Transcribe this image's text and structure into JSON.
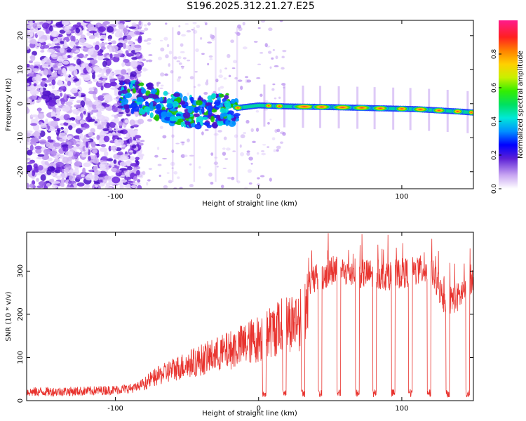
{
  "title": "S196.2025.312.21.27.E25",
  "colors": {
    "background": "#ffffff",
    "snr_line": "#e8332e",
    "spectro_ridge": "#ff2a2a",
    "spectro_noise": "#7b2bd8"
  },
  "chart_data": [
    {
      "type": "heatmap",
      "name": "spectrogram",
      "xlabel": "Height of straight line (km)",
      "ylabel": "Frequency (Hz)",
      "xlim": [
        -162,
        150
      ],
      "ylim": [
        -25,
        24.5
      ],
      "xticks": [
        -100,
        0,
        100
      ],
      "xtick_labels": [
        "-100",
        "0",
        "100"
      ],
      "yticks": [
        -20,
        -10,
        0,
        10,
        20
      ],
      "ytick_labels": [
        "-20",
        "-10",
        "0",
        "10",
        "20"
      ],
      "ridge": {
        "description_points_x": [
          -95,
          -80,
          -60,
          -40,
          -20,
          0,
          20,
          50,
          80,
          110,
          140,
          150
        ],
        "frequency_hz": [
          2.5,
          1.5,
          -1.5,
          -2.5,
          -1.5,
          -0.5,
          -0.8,
          -1.0,
          -1.3,
          -1.6,
          -2.3,
          -2.6
        ]
      },
      "colorbar": {
        "label": "Normalized spectral amplitude",
        "range": [
          0.0,
          1.0
        ],
        "ticks": [
          0.0,
          0.2,
          0.4,
          0.6,
          0.8
        ],
        "tick_labels": [
          "0.0",
          "0.2",
          "0.4",
          "0.6",
          "0.8"
        ]
      }
    },
    {
      "type": "line",
      "name": "snr",
      "xlabel": "Height of straight line (km)",
      "ylabel": "SNR (10 * v/v)",
      "xlim": [
        -162,
        150
      ],
      "ylim": [
        0,
        390
      ],
      "xticks": [
        -100,
        0,
        100
      ],
      "xtick_labels": [
        "-100",
        "0",
        "100"
      ],
      "yticks": [
        0,
        100,
        200,
        300
      ],
      "ytick_labels": [
        "0",
        "100",
        "200",
        "300"
      ],
      "envelope_x": [
        -162,
        -120,
        -100,
        -85,
        -75,
        -60,
        -40,
        -20,
        0,
        10,
        20,
        30,
        35,
        50,
        70,
        90,
        110,
        120,
        130,
        140,
        150
      ],
      "envelope_y": [
        20,
        22,
        25,
        30,
        55,
        80,
        105,
        130,
        160,
        180,
        200,
        210,
        270,
        300,
        295,
        290,
        300,
        305,
        230,
        240,
        290
      ],
      "dropouts_x": [
        4,
        18,
        31,
        43,
        56,
        69,
        81,
        94,
        106,
        119,
        132,
        146
      ]
    }
  ]
}
